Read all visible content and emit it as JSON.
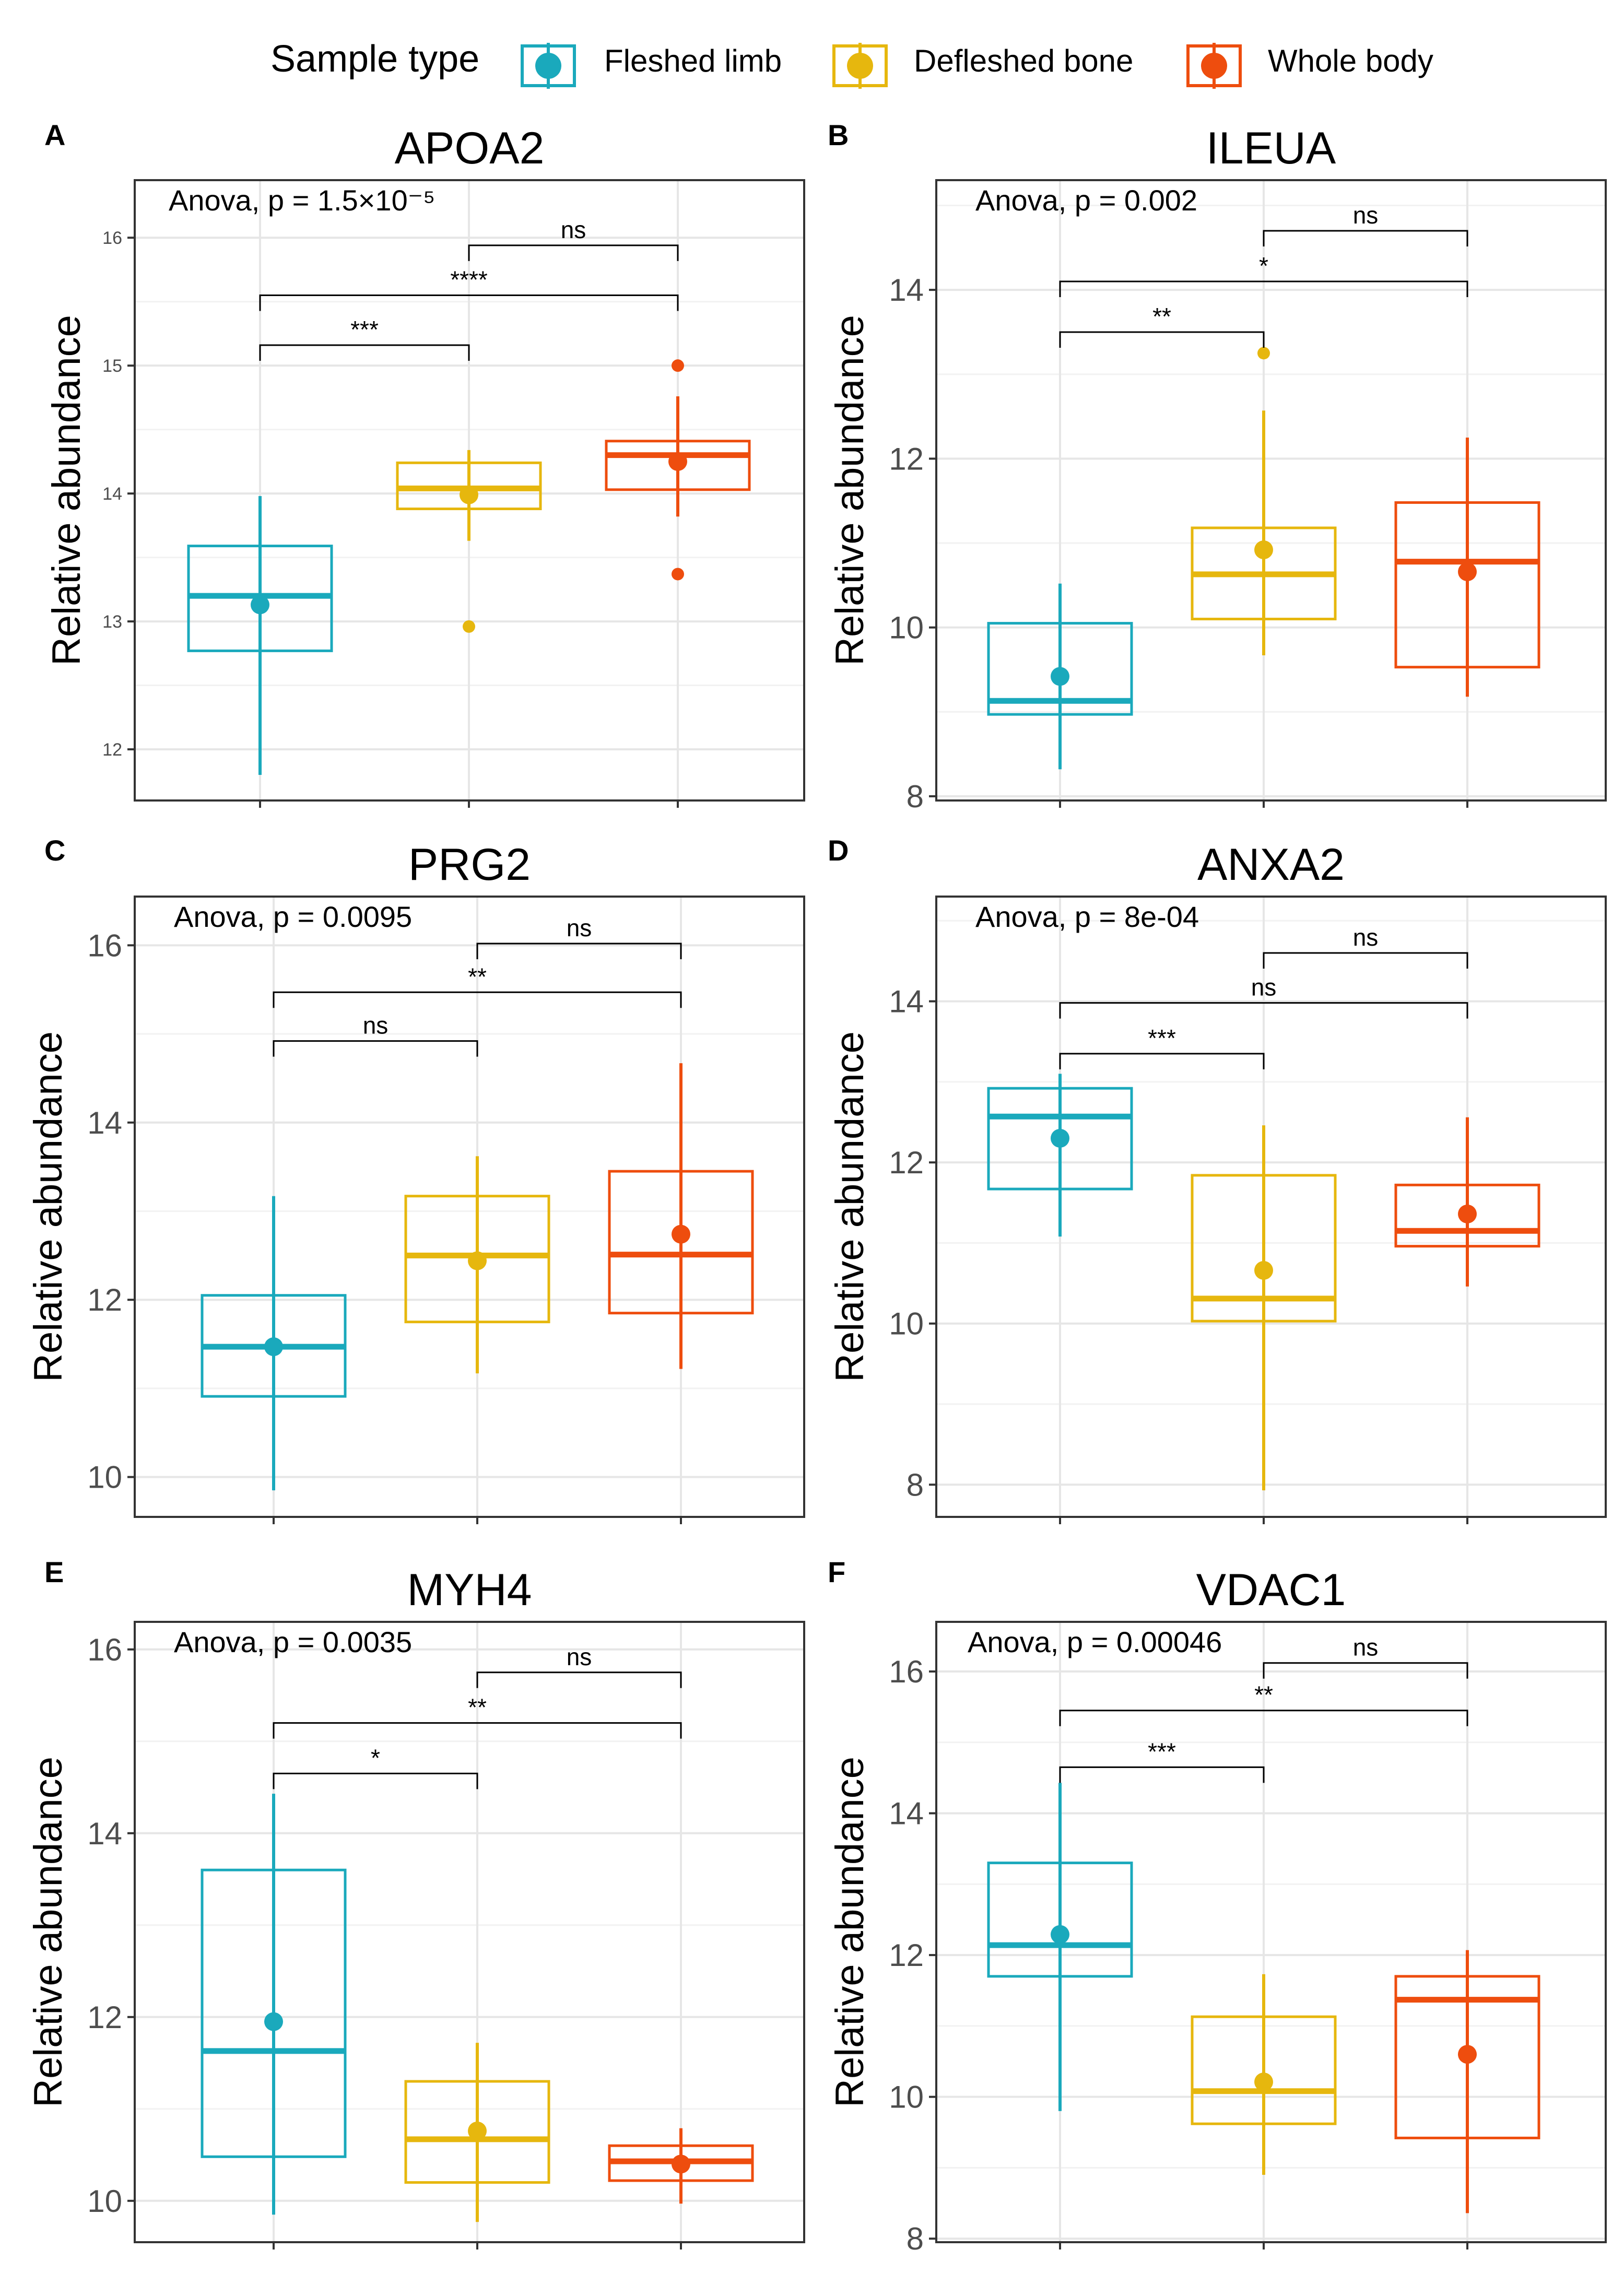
{
  "legend": {
    "title": "Sample type",
    "items": [
      {
        "label": "Fleshed limb",
        "color": "#1AA9BC"
      },
      {
        "label": "Defleshed bone",
        "color": "#E6B70E"
      },
      {
        "label": "Whole body",
        "color": "#EE4D0E"
      }
    ]
  },
  "chart_data": [
    {
      "type": "box",
      "panel_label": "A",
      "title": "APOA2",
      "xlabel": "",
      "ylabel": "Relative abundance",
      "ylim": [
        11.6,
        16.45
      ],
      "yticks": [
        "12",
        "13",
        "14",
        "15",
        "16"
      ],
      "tick_font": "small",
      "anova_text": "Anova, p = 1.5×10⁻⁵",
      "categories": [
        "Fleshed limb",
        "Defleshed bone",
        "Whole body"
      ],
      "boxes": [
        {
          "q1": 12.77,
          "median": 13.2,
          "q3": 13.59,
          "whisker_low": 11.8,
          "whisker_high": 13.98,
          "mean": 13.13,
          "outliers": []
        },
        {
          "q1": 13.88,
          "median": 14.04,
          "q3": 14.24,
          "whisker_low": 13.63,
          "whisker_high": 14.34,
          "mean": 13.99,
          "outliers": [
            12.96
          ]
        },
        {
          "q1": 14.03,
          "median": 14.3,
          "q3": 14.41,
          "whisker_low": 13.82,
          "whisker_high": 14.76,
          "mean": 14.25,
          "outliers": [
            15.0,
            13.37
          ]
        }
      ],
      "comparisons": [
        {
          "from": 0,
          "to": 1,
          "y": 15.16,
          "label": "***"
        },
        {
          "from": 0,
          "to": 2,
          "y": 15.55,
          "label": "****"
        },
        {
          "from": 1,
          "to": 2,
          "y": 15.94,
          "label": "ns"
        }
      ]
    },
    {
      "type": "box",
      "panel_label": "B",
      "title": "ILEUA",
      "xlabel": "",
      "ylabel": "Relative abundance",
      "ylim": [
        7.95,
        15.3
      ],
      "yticks": [
        "8",
        "10",
        "12",
        "14"
      ],
      "tick_font": "large",
      "anova_text": "Anova, p = 0.002",
      "categories": [
        "Fleshed limb",
        "Defleshed bone",
        "Whole body"
      ],
      "boxes": [
        {
          "q1": 8.97,
          "median": 9.13,
          "q3": 10.05,
          "whisker_low": 8.32,
          "whisker_high": 10.52,
          "mean": 9.42,
          "outliers": []
        },
        {
          "q1": 10.1,
          "median": 10.63,
          "q3": 11.18,
          "whisker_low": 9.67,
          "whisker_high": 12.57,
          "mean": 10.92,
          "outliers": [
            13.25
          ]
        },
        {
          "q1": 9.53,
          "median": 10.78,
          "q3": 11.48,
          "whisker_low": 9.18,
          "whisker_high": 12.25,
          "mean": 10.66,
          "outliers": []
        }
      ],
      "comparisons": [
        {
          "from": 0,
          "to": 1,
          "y": 13.5,
          "label": "**"
        },
        {
          "from": 0,
          "to": 2,
          "y": 14.1,
          "label": "*"
        },
        {
          "from": 1,
          "to": 2,
          "y": 14.7,
          "label": "ns"
        }
      ]
    },
    {
      "type": "box",
      "panel_label": "C",
      "title": "PRG2",
      "xlabel": "",
      "ylabel": "Relative abundance",
      "ylim": [
        9.55,
        16.55
      ],
      "yticks": [
        "10",
        "12",
        "14",
        "16"
      ],
      "tick_font": "large",
      "anova_text": "Anova, p = 0.0095",
      "categories": [
        "Fleshed limb",
        "Defleshed bone",
        "Whole body"
      ],
      "boxes": [
        {
          "q1": 10.91,
          "median": 11.47,
          "q3": 12.05,
          "whisker_low": 9.85,
          "whisker_high": 13.17,
          "mean": 11.47,
          "outliers": []
        },
        {
          "q1": 11.75,
          "median": 12.5,
          "q3": 13.17,
          "whisker_low": 11.17,
          "whisker_high": 13.62,
          "mean": 12.44,
          "outliers": []
        },
        {
          "q1": 11.85,
          "median": 12.51,
          "q3": 13.45,
          "whisker_low": 11.22,
          "whisker_high": 14.67,
          "mean": 12.74,
          "outliers": []
        }
      ],
      "comparisons": [
        {
          "from": 0,
          "to": 1,
          "y": 14.92,
          "label": "ns"
        },
        {
          "from": 0,
          "to": 2,
          "y": 15.47,
          "label": "**"
        },
        {
          "from": 1,
          "to": 2,
          "y": 16.02,
          "label": "ns"
        }
      ]
    },
    {
      "type": "box",
      "panel_label": "D",
      "title": "ANXA2",
      "xlabel": "",
      "ylabel": "Relative abundance",
      "ylim": [
        7.6,
        15.3
      ],
      "yticks": [
        "8",
        "10",
        "12",
        "14"
      ],
      "tick_font": "large",
      "anova_text": "Anova, p = 8e-04",
      "categories": [
        "Fleshed limb",
        "Defleshed bone",
        "Whole body"
      ],
      "boxes": [
        {
          "q1": 11.67,
          "median": 12.57,
          "q3": 12.92,
          "whisker_low": 11.08,
          "whisker_high": 13.1,
          "mean": 12.3,
          "outliers": []
        },
        {
          "q1": 10.03,
          "median": 10.31,
          "q3": 11.84,
          "whisker_low": 7.93,
          "whisker_high": 12.46,
          "mean": 10.66,
          "outliers": []
        },
        {
          "q1": 10.96,
          "median": 11.15,
          "q3": 11.72,
          "whisker_low": 10.46,
          "whisker_high": 12.56,
          "mean": 11.36,
          "outliers": []
        }
      ],
      "comparisons": [
        {
          "from": 0,
          "to": 1,
          "y": 13.35,
          "label": "***"
        },
        {
          "from": 0,
          "to": 2,
          "y": 13.98,
          "label": "ns"
        },
        {
          "from": 1,
          "to": 2,
          "y": 14.6,
          "label": "ns"
        }
      ]
    },
    {
      "type": "box",
      "panel_label": "E",
      "title": "MYH4",
      "xlabel": "",
      "ylabel": "Relative abundance",
      "ylim": [
        9.55,
        16.3
      ],
      "yticks": [
        "10",
        "12",
        "14",
        "16"
      ],
      "tick_font": "large",
      "anova_text": "Anova, p = 0.0035",
      "categories": [
        "Fleshed limb",
        "Defleshed bone",
        "Whole body"
      ],
      "boxes": [
        {
          "q1": 10.48,
          "median": 11.63,
          "q3": 13.6,
          "whisker_low": 9.85,
          "whisker_high": 14.43,
          "mean": 11.95,
          "outliers": []
        },
        {
          "q1": 10.2,
          "median": 10.67,
          "q3": 11.3,
          "whisker_low": 9.77,
          "whisker_high": 11.72,
          "mean": 10.76,
          "outliers": []
        },
        {
          "q1": 10.22,
          "median": 10.43,
          "q3": 10.6,
          "whisker_low": 9.97,
          "whisker_high": 10.79,
          "mean": 10.4,
          "outliers": []
        }
      ],
      "comparisons": [
        {
          "from": 0,
          "to": 1,
          "y": 14.65,
          "label": "*"
        },
        {
          "from": 0,
          "to": 2,
          "y": 15.2,
          "label": "**"
        },
        {
          "from": 1,
          "to": 2,
          "y": 15.75,
          "label": "ns"
        }
      ]
    },
    {
      "type": "box",
      "panel_label": "F",
      "title": "VDAC1",
      "xlabel": "",
      "ylabel": "Relative abundance",
      "ylim": [
        7.95,
        16.7
      ],
      "yticks": [
        "8",
        "10",
        "12",
        "14",
        "16"
      ],
      "tick_font": "large",
      "anova_text": "Anova, p = 0.00046",
      "categories": [
        "Fleshed limb",
        "Defleshed bone",
        "Whole body"
      ],
      "boxes": [
        {
          "q1": 11.7,
          "median": 12.14,
          "q3": 13.3,
          "whisker_low": 9.8,
          "whisker_high": 14.43,
          "mean": 12.29,
          "outliers": []
        },
        {
          "q1": 9.62,
          "median": 10.08,
          "q3": 11.13,
          "whisker_low": 8.9,
          "whisker_high": 11.73,
          "mean": 10.21,
          "outliers": []
        },
        {
          "q1": 9.42,
          "median": 11.37,
          "q3": 11.7,
          "whisker_low": 8.36,
          "whisker_high": 12.07,
          "mean": 10.6,
          "outliers": []
        }
      ],
      "comparisons": [
        {
          "from": 0,
          "to": 1,
          "y": 14.65,
          "label": "***"
        },
        {
          "from": 0,
          "to": 2,
          "y": 15.45,
          "label": "**"
        },
        {
          "from": 1,
          "to": 2,
          "y": 16.12,
          "label": "ns"
        }
      ]
    }
  ]
}
